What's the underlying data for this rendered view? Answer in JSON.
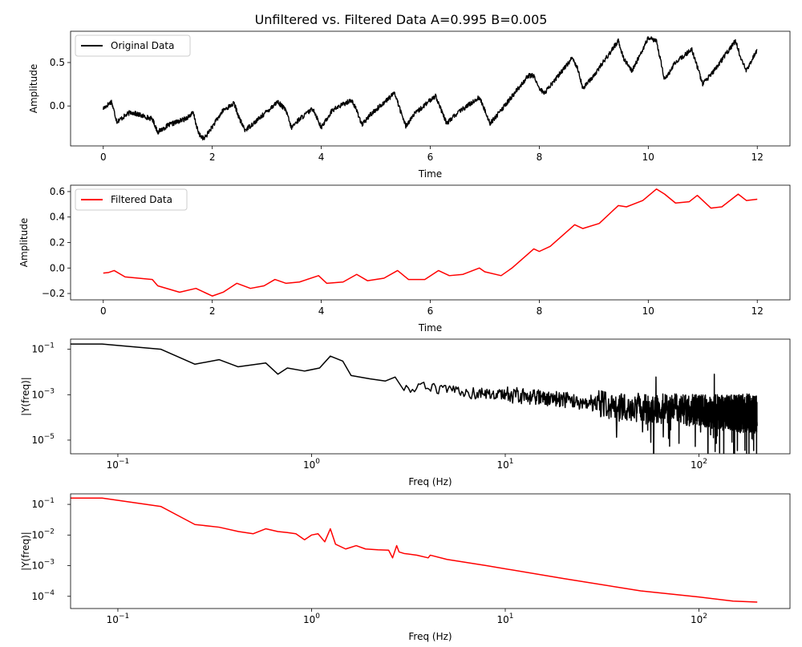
{
  "figure_title": "Unfiltered vs. Filtered Data A=0.995 B=0.005",
  "chart_data": [
    {
      "type": "line",
      "scale": "linear",
      "xlabel": "Time",
      "ylabel": "Amplitude",
      "xlim": [
        -0.6,
        12.6
      ],
      "ylim": [
        -0.46,
        0.86
      ],
      "xticks": [
        0,
        2,
        4,
        6,
        8,
        10,
        12
      ],
      "xtick_labels": [
        "0",
        "2",
        "4",
        "6",
        "8",
        "10",
        "12"
      ],
      "yticks": [
        0.0,
        0.5
      ],
      "ytick_labels": [
        "0.0",
        "0.5"
      ],
      "legend": {
        "placement": "top-left",
        "entries": [
          "Original Data"
        ]
      },
      "series": [
        {
          "name": "Original Data",
          "color": "#000000",
          "noisy": true,
          "x": [
            0,
            0.15,
            0.25,
            0.5,
            0.9,
            1.0,
            1.2,
            1.5,
            1.65,
            1.75,
            1.85,
            2.2,
            2.4,
            2.5,
            2.6,
            2.85,
            3.2,
            3.35,
            3.45,
            3.6,
            3.85,
            4.0,
            4.2,
            4.55,
            4.65,
            4.75,
            4.9,
            5.35,
            5.45,
            5.55,
            5.7,
            6.1,
            6.2,
            6.3,
            6.5,
            6.9,
            7.0,
            7.1,
            7.3,
            7.8,
            7.9,
            8.0,
            8.1,
            8.6,
            8.7,
            8.8,
            9.0,
            9.45,
            9.55,
            9.7,
            10.0,
            10.15,
            10.3,
            10.5,
            10.8,
            10.9,
            11.0,
            11.2,
            11.6,
            11.7,
            11.8,
            12.0
          ],
          "y": [
            -0.03,
            0.05,
            -0.18,
            -0.07,
            -0.15,
            -0.3,
            -0.22,
            -0.15,
            -0.08,
            -0.32,
            -0.38,
            -0.05,
            0.03,
            -0.15,
            -0.28,
            -0.15,
            0.05,
            -0.05,
            -0.25,
            -0.15,
            -0.03,
            -0.25,
            -0.05,
            0.07,
            -0.05,
            -0.22,
            -0.1,
            0.15,
            -0.05,
            -0.23,
            -0.1,
            0.12,
            -0.05,
            -0.2,
            -0.08,
            0.1,
            -0.05,
            -0.2,
            -0.05,
            0.35,
            0.35,
            0.2,
            0.15,
            0.55,
            0.45,
            0.2,
            0.35,
            0.75,
            0.55,
            0.4,
            0.78,
            0.75,
            0.3,
            0.5,
            0.65,
            0.45,
            0.25,
            0.4,
            0.75,
            0.55,
            0.4,
            0.65
          ]
        }
      ]
    },
    {
      "type": "line",
      "scale": "linear",
      "xlabel": "Time",
      "ylabel": "Amplitude",
      "xlim": [
        -0.6,
        12.6
      ],
      "ylim": [
        -0.25,
        0.65
      ],
      "xticks": [
        0,
        2,
        4,
        6,
        8,
        10,
        12
      ],
      "xtick_labels": [
        "0",
        "2",
        "4",
        "6",
        "8",
        "10",
        "12"
      ],
      "yticks": [
        -0.2,
        0.0,
        0.2,
        0.4,
        0.6
      ],
      "ytick_labels": [
        "−0.2",
        "0.0",
        "0.2",
        "0.4",
        "0.6"
      ],
      "legend": {
        "placement": "top-left",
        "entries": [
          "Filtered Data"
        ]
      },
      "series": [
        {
          "name": "Filtered Data",
          "color": "#ff0000",
          "noisy": false,
          "x": [
            0,
            0.1,
            0.2,
            0.4,
            0.9,
            1.0,
            1.4,
            1.7,
            2.0,
            2.2,
            2.45,
            2.7,
            2.95,
            3.15,
            3.35,
            3.6,
            3.95,
            4.1,
            4.4,
            4.65,
            4.85,
            5.15,
            5.4,
            5.6,
            5.9,
            6.15,
            6.35,
            6.6,
            6.9,
            7.0,
            7.3,
            7.5,
            7.9,
            8.0,
            8.2,
            8.65,
            8.8,
            9.1,
            9.45,
            9.6,
            9.9,
            10.15,
            10.3,
            10.5,
            10.75,
            10.9,
            11.15,
            11.35,
            11.65,
            11.8,
            12.0
          ],
          "y": [
            -0.04,
            -0.035,
            -0.02,
            -0.07,
            -0.09,
            -0.14,
            -0.19,
            -0.16,
            -0.22,
            -0.19,
            -0.12,
            -0.16,
            -0.14,
            -0.09,
            -0.12,
            -0.11,
            -0.06,
            -0.12,
            -0.11,
            -0.05,
            -0.1,
            -0.08,
            -0.02,
            -0.09,
            -0.09,
            -0.02,
            -0.06,
            -0.05,
            0.0,
            -0.03,
            -0.06,
            0.0,
            0.15,
            0.13,
            0.17,
            0.34,
            0.31,
            0.35,
            0.49,
            0.48,
            0.53,
            0.62,
            0.58,
            0.51,
            0.52,
            0.57,
            0.47,
            0.48,
            0.58,
            0.53,
            0.54
          ]
        }
      ]
    },
    {
      "type": "line",
      "scale": "loglog",
      "xlabel": "Freq (Hz)",
      "ylabel": "|Y(freq)|",
      "xlim": [
        0.057,
        295
      ],
      "ylim": [
        2.5e-06,
        0.28
      ],
      "xticks": [
        0.1,
        1,
        10,
        100
      ],
      "xtick_labels": [
        "10",
        "10",
        "10",
        "10"
      ],
      "xtick_exponents": [
        "−1",
        "0",
        "1",
        "2"
      ],
      "yticks": [
        1e-05,
        0.001,
        0.1
      ],
      "ytick_labels": [
        "10",
        "10",
        "10"
      ],
      "ytick_exponents": [
        "−5",
        "−3",
        "−1"
      ],
      "series": [
        {
          "name": "",
          "color": "#000000",
          "noisy": true,
          "x": [
            0.042,
            0.083,
            0.167,
            0.25,
            0.333,
            0.417,
            0.58,
            0.67,
            0.75,
            0.92,
            1.1,
            1.25,
            1.45,
            1.6,
            2.0,
            2.4,
            2.7,
            3.0,
            4.0,
            6.0,
            10,
            15,
            20,
            30,
            40,
            60,
            100,
            150,
            200
          ],
          "y": [
            0.17,
            0.17,
            0.1,
            0.022,
            0.035,
            0.017,
            0.025,
            0.008,
            0.015,
            0.011,
            0.015,
            0.05,
            0.03,
            0.007,
            0.005,
            0.004,
            0.006,
            0.002,
            0.002,
            0.0012,
            0.001,
            0.0008,
            0.0006,
            0.0004,
            0.0003,
            0.00025,
            0.0002,
            0.00015,
            0.00015
          ],
          "spikes": [
            {
              "x": 60,
              "y": 0.006
            },
            {
              "x": 120,
              "y": 0.008
            }
          ]
        }
      ]
    },
    {
      "type": "line",
      "scale": "loglog",
      "xlabel": "Freq (Hz)",
      "ylabel": "|Y(freq)|",
      "xlim": [
        0.057,
        295
      ],
      "ylim": [
        4e-05,
        0.22
      ],
      "xticks": [
        0.1,
        1,
        10,
        100
      ],
      "xtick_labels": [
        "10",
        "10",
        "10",
        "10"
      ],
      "xtick_exponents": [
        "−1",
        "0",
        "1",
        "2"
      ],
      "yticks": [
        0.0001,
        0.001,
        0.01,
        0.1
      ],
      "ytick_labels": [
        "10",
        "10",
        "10",
        "10"
      ],
      "ytick_exponents": [
        "−4",
        "−3",
        "−2",
        "−1"
      ],
      "series": [
        {
          "name": "",
          "color": "#ff0000",
          "noisy": false,
          "x": [
            0.042,
            0.083,
            0.167,
            0.25,
            0.333,
            0.42,
            0.5,
            0.58,
            0.67,
            0.75,
            0.83,
            0.92,
            1.0,
            1.08,
            1.17,
            1.25,
            1.33,
            1.5,
            1.7,
            1.9,
            2.2,
            2.5,
            2.62,
            2.75,
            2.83,
            3.0,
            3.5,
            4.0,
            4.1,
            5.0,
            8.0,
            20,
            50,
            100,
            150,
            200
          ],
          "y": [
            0.16,
            0.16,
            0.085,
            0.022,
            0.018,
            0.013,
            0.011,
            0.016,
            0.013,
            0.012,
            0.011,
            0.007,
            0.01,
            0.011,
            0.006,
            0.016,
            0.005,
            0.0035,
            0.0045,
            0.0035,
            0.0033,
            0.0032,
            0.0018,
            0.0045,
            0.0028,
            0.0025,
            0.0022,
            0.0018,
            0.0022,
            0.0016,
            0.001,
            0.00038,
            0.00015,
            9.5e-05,
            7e-05,
            6.5e-05
          ]
        }
      ]
    }
  ]
}
